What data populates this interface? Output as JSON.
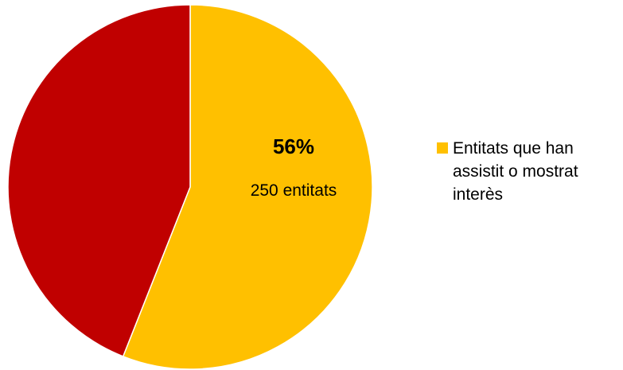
{
  "chart_data": {
    "type": "pie",
    "title": "",
    "slices": [
      {
        "name": "Entitats que han assistit o mostrat interès",
        "value": 56,
        "value_label": "56%",
        "count_label": "250 entitats",
        "color": "#FFC000"
      },
      {
        "name": "",
        "value": 44,
        "color": "#C00000"
      }
    ],
    "start_angle_deg": 0,
    "direction": "clockwise",
    "legend_position": "right"
  },
  "legend": {
    "items": [
      {
        "label": "Entitats que han\nassistit o mostrat\ninterès",
        "color": "#FFC000"
      }
    ]
  }
}
